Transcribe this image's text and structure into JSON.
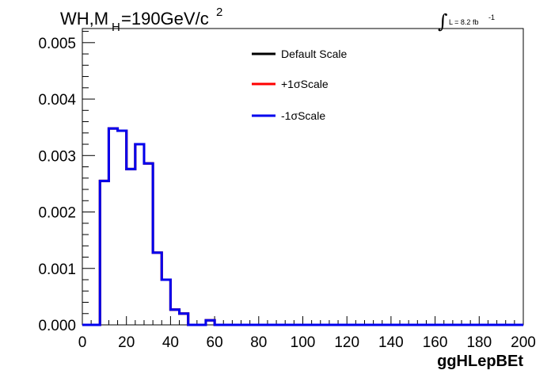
{
  "chart_data": {
    "type": "line",
    "step": true,
    "title": {
      "main": "WH,M",
      "subscript": "H",
      "rest": "=190GeV/c",
      "superscript": "2"
    },
    "luminosity": {
      "symbol": "∫",
      "text": "L = 8.2 fb",
      "superscript": "-1"
    },
    "xlabel": "ggHLepBEt",
    "ylabel": "",
    "xlim": [
      0,
      200
    ],
    "ylim": [
      0,
      0.00525
    ],
    "x_ticks": [
      0,
      20,
      40,
      60,
      80,
      100,
      120,
      140,
      160,
      180,
      200
    ],
    "y_ticks": [
      0.0,
      0.001,
      0.002,
      0.003,
      0.004,
      0.005
    ],
    "x_tick_labels": [
      "0",
      "20",
      "40",
      "60",
      "80",
      "100",
      "120",
      "140",
      "160",
      "180",
      "200"
    ],
    "y_tick_labels": [
      "0.000",
      "0.001",
      "0.002",
      "0.003",
      "0.004",
      "0.005"
    ],
    "bin_width": 4,
    "bin_edges_start": 0,
    "legend_position": "top-center",
    "series": [
      {
        "name": "Default Scale",
        "color": "#000000",
        "values": [
          0,
          0,
          0.00255,
          0.00348,
          0.00344,
          0.00276,
          0.0032,
          0.00286,
          0.00128,
          0.0008,
          0.00027,
          0.0002,
          0,
          0,
          8e-05,
          0,
          0,
          0,
          0,
          0,
          0,
          0,
          0,
          0,
          0,
          0,
          0,
          0,
          0,
          0,
          0,
          0,
          0,
          0,
          0,
          0,
          0,
          0,
          0,
          0,
          0,
          0,
          0,
          0,
          0,
          0,
          0,
          0,
          0,
          0
        ]
      },
      {
        "name": "+1σScale",
        "color": "#ff0000",
        "values": [
          0,
          0,
          0.00255,
          0.00348,
          0.00344,
          0.00276,
          0.0032,
          0.00286,
          0.00128,
          0.0008,
          0.00027,
          0.0002,
          0,
          0,
          8e-05,
          0,
          0,
          0,
          0,
          0,
          0,
          0,
          0,
          0,
          0,
          0,
          0,
          0,
          0,
          0,
          0,
          0,
          0,
          0,
          0,
          0,
          0,
          0,
          0,
          0,
          0,
          0,
          0,
          0,
          0,
          0,
          0,
          0,
          0,
          0
        ]
      },
      {
        "name": "-1σScale",
        "color": "#0000ee",
        "values": [
          0,
          0,
          0.00255,
          0.00348,
          0.00344,
          0.00276,
          0.0032,
          0.00286,
          0.00128,
          0.0008,
          0.00027,
          0.0002,
          0,
          0,
          8e-05,
          0,
          0,
          0,
          0,
          0,
          0,
          0,
          0,
          0,
          0,
          0,
          0,
          0,
          0,
          0,
          0,
          0,
          0,
          0,
          0,
          0,
          0,
          0,
          0,
          0,
          0,
          0,
          0,
          0,
          0,
          0,
          0,
          0,
          0,
          0
        ]
      }
    ]
  }
}
